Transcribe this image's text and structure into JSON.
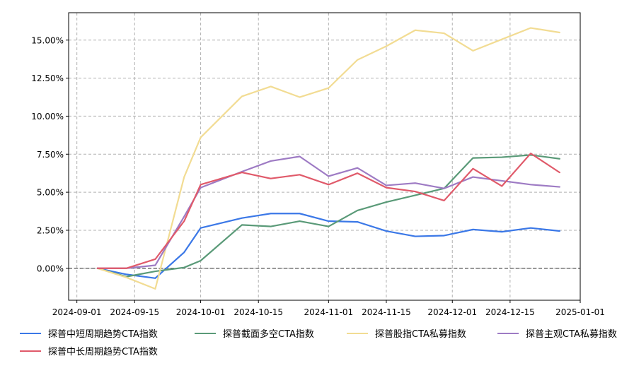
{
  "chart_data": {
    "type": "line",
    "title": "",
    "xlabel": "",
    "ylabel": "",
    "x_ticks": [
      "2024-09-01",
      "2024-09-15",
      "2024-10-01",
      "2024-10-15",
      "2024-11-01",
      "2024-11-15",
      "2024-12-01",
      "2024-12-15",
      "2025-01-01"
    ],
    "y_ticks": [
      "0.00%",
      "2.50%",
      "5.00%",
      "7.50%",
      "10.00%",
      "12.50%",
      "15.00%"
    ],
    "xlim": [
      "2024-08-30",
      "2025-01-01"
    ],
    "ylim": [
      -0.021,
      0.168
    ],
    "grid": true,
    "zero_line": true,
    "legend_position": "bottom",
    "dates": [
      "2024-09-06",
      "2024-09-13",
      "2024-09-20",
      "2024-09-27",
      "2024-10-01",
      "2024-10-11",
      "2024-10-18",
      "2024-10-25",
      "2024-11-01",
      "2024-11-08",
      "2024-11-15",
      "2024-11-22",
      "2024-11-29",
      "2024-12-06",
      "2024-12-13",
      "2024-12-20",
      "2024-12-27"
    ],
    "series": [
      {
        "name": "探普中短周期趋势CTA指数",
        "color": "#3b78e7",
        "values": [
          0.0,
          -0.004,
          -0.0065,
          0.0105,
          0.0265,
          0.033,
          0.036,
          0.036,
          0.031,
          0.0305,
          0.0245,
          0.021,
          0.0215,
          0.0255,
          0.024,
          0.0265,
          0.0245
        ]
      },
      {
        "name": "探普截面多空CTA指数",
        "color": "#5a9a78",
        "values": [
          0.0,
          -0.0055,
          -0.002,
          0.0005,
          0.005,
          0.0285,
          0.0275,
          0.031,
          0.0275,
          0.038,
          0.0435,
          0.048,
          0.0525,
          0.0725,
          0.073,
          0.0745,
          0.072
        ]
      },
      {
        "name": "探普股指CTA私募指数",
        "color": "#f2dc93",
        "values": [
          0.0,
          -0.006,
          -0.0135,
          0.06,
          0.086,
          0.113,
          0.1195,
          0.1125,
          0.1185,
          0.137,
          0.146,
          0.1565,
          0.1545,
          0.143,
          0.1505,
          0.158,
          0.155
        ]
      },
      {
        "name": "探普主观CTA私募指数",
        "color": "#9e7bc4",
        "values": [
          0.0,
          0.0,
          0.002,
          0.034,
          0.053,
          0.0635,
          0.0705,
          0.0735,
          0.0605,
          0.066,
          0.0545,
          0.056,
          0.0525,
          0.06,
          0.0575,
          0.055,
          0.0535
        ]
      },
      {
        "name": "探普中长周期趋势CTA指数",
        "color": "#e05a6a",
        "values": [
          0.0,
          0.0,
          0.006,
          0.031,
          0.055,
          0.063,
          0.059,
          0.0615,
          0.055,
          0.0625,
          0.053,
          0.0505,
          0.0445,
          0.0655,
          0.054,
          0.0755,
          0.063
        ]
      }
    ]
  }
}
